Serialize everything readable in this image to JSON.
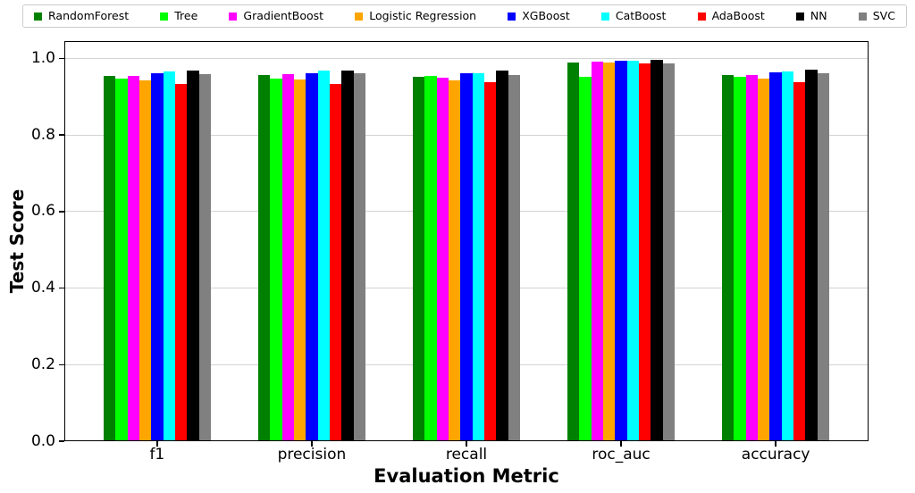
{
  "chart_data": {
    "type": "bar",
    "title": "",
    "xlabel": "Evaluation Metric",
    "ylabel": "Test Score",
    "categories": [
      "f1",
      "precision",
      "recall",
      "roc_auc",
      "accuracy"
    ],
    "series": [
      {
        "name": "RandomForest",
        "color": "#008000",
        "values": [
          0.955,
          0.957,
          0.951,
          0.99,
          0.957
        ]
      },
      {
        "name": "Tree",
        "color": "#00FF00",
        "values": [
          0.948,
          0.947,
          0.954,
          0.952,
          0.951
        ]
      },
      {
        "name": "GradientBoost",
        "color": "#FF00FF",
        "values": [
          0.955,
          0.959,
          0.95,
          0.991,
          0.956
        ]
      },
      {
        "name": "Logistic Regression",
        "color": "#FFA500",
        "values": [
          0.943,
          0.945,
          0.942,
          0.988,
          0.946
        ]
      },
      {
        "name": "XGBoost",
        "color": "#0000FF",
        "values": [
          0.962,
          0.962,
          0.962,
          0.993,
          0.963
        ]
      },
      {
        "name": "CatBoost",
        "color": "#00FFFF",
        "values": [
          0.965,
          0.968,
          0.961,
          0.994,
          0.966
        ]
      },
      {
        "name": "AdaBoost",
        "color": "#FF0000",
        "values": [
          0.934,
          0.932,
          0.938,
          0.986,
          0.938
        ]
      },
      {
        "name": "NN",
        "color": "#000000",
        "values": [
          0.969,
          0.968,
          0.969,
          0.997,
          0.97
        ]
      },
      {
        "name": "SVC",
        "color": "#808080",
        "values": [
          0.959,
          0.962,
          0.956,
          0.987,
          0.96
        ]
      }
    ],
    "yticks": [
      0.0,
      0.2,
      0.4,
      0.6,
      0.8,
      1.0
    ],
    "ytick_labels": [
      "0.0",
      "0.2",
      "0.4",
      "0.6",
      "0.8",
      "1.0"
    ],
    "ylim": [
      0,
      1.045
    ],
    "grid": true,
    "legend_position": "top"
  },
  "colors": {
    "background": "#ffffff",
    "grid": "#d3d3d3",
    "frame": "#000000",
    "legend_border": "#cccccc"
  }
}
